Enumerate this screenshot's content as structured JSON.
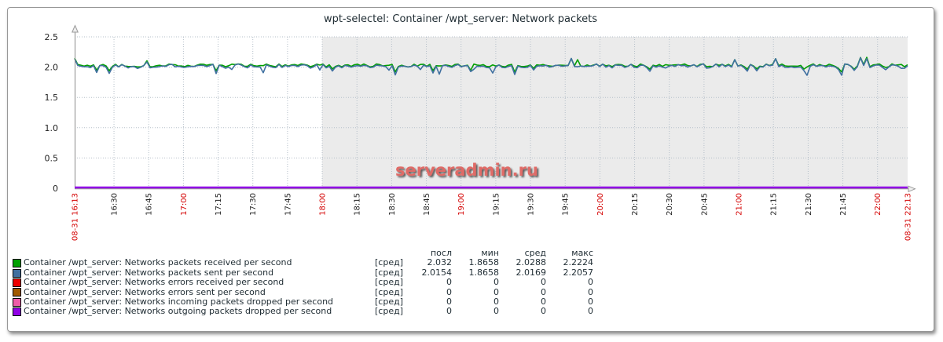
{
  "title": "wpt-selectel: Container /wpt_server: Network packets",
  "watermark": "serveradmin.ru",
  "legend": {
    "headers": [
      "посл",
      "мин",
      "сред",
      "макс"
    ]
  },
  "chart_data": {
    "type": "line",
    "title": "wpt-selectel: Container /wpt_server: Network packets",
    "ylim": [
      0,
      2.5
    ],
    "yticks": [
      "2.5",
      "2.0",
      "1.5",
      "1.0",
      "0.5",
      "0"
    ],
    "grid": true,
    "legend_position": "bottom",
    "x_axis": {
      "start": {
        "time": "16:13",
        "label": "08-31 16:13"
      },
      "end": {
        "time": "22:13",
        "label": "08-31 22:13"
      },
      "ticks": [
        "16:30",
        "16:45",
        "17:00",
        "17:15",
        "17:30",
        "17:45",
        "18:00",
        "18:15",
        "18:30",
        "18:45",
        "19:00",
        "19:15",
        "19:30",
        "19:45",
        "20:00",
        "20:15",
        "20:30",
        "20:45",
        "21:00",
        "21:15",
        "21:30",
        "21:45",
        "22:00"
      ]
    },
    "shade": {
      "from": "18:00",
      "to": "22:13",
      "color": "#EBEBEB"
    },
    "series": [
      {
        "name": "Container /wpt_server: Networks packets received per second",
        "color": "#00A000",
        "func": "[сред]",
        "plotted": true,
        "stats": {
          "last": "2.032",
          "min": "1.8658",
          "avg": "2.0288",
          "max": "2.2224"
        }
      },
      {
        "name": "Container /wpt_server: Networks packets sent per second",
        "color": "#4070A0",
        "func": "[сред]",
        "plotted": true,
        "stats": {
          "last": "2.0154",
          "min": "1.8658",
          "avg": "2.0169",
          "max": "2.2057"
        }
      },
      {
        "name": "Container /wpt_server: Networks errors received per second",
        "color": "#EE0000",
        "func": "[сред]",
        "plotted": false,
        "stats": {
          "last": "0",
          "min": "0",
          "avg": "0",
          "max": "0"
        }
      },
      {
        "name": "Container /wpt_server: Networks errors sent per second",
        "color": "#A05A00",
        "func": "[сред]",
        "plotted": false,
        "stats": {
          "last": "0",
          "min": "0",
          "avg": "0",
          "max": "0"
        }
      },
      {
        "name": "Container /wpt_server: Networks incoming packets dropped per second",
        "color": "#EE5CA8",
        "func": "[сред]",
        "plotted": false,
        "stats": {
          "last": "0",
          "min": "0",
          "avg": "0",
          "max": "0"
        }
      },
      {
        "name": "Container /wpt_server: Networks outgoing packets dropped per second",
        "color": "#9100E6",
        "func": "[сред]",
        "plotted": false,
        "stats": {
          "last": "0",
          "min": "0",
          "avg": "0",
          "max": "0"
        }
      }
    ],
    "colors": {
      "tick_red": "#D40000",
      "tick_dark": "#222222",
      "grid": "#B5BFC9",
      "axis": "#8C8C8C",
      "text": "#1F2C33"
    }
  }
}
